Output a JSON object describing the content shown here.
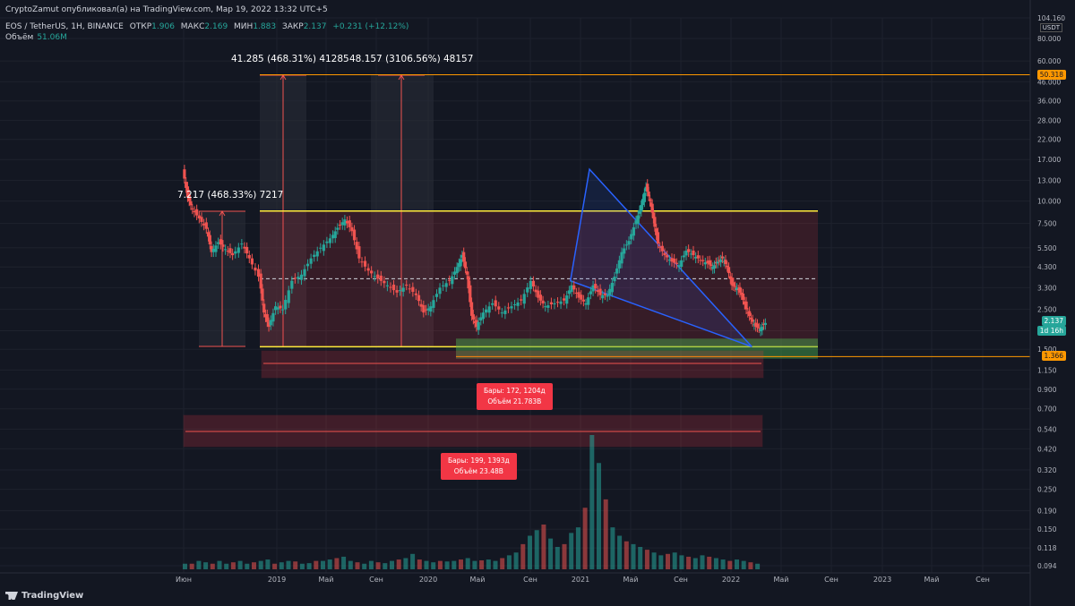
{
  "header": {
    "publisher_line": "CryptoZamut опубликовал(а) на TradingView.com, Мар 19, 2022 13:32 UTC+5",
    "symbol": "EOS / TetherUS, 1Н, BINANCE",
    "open_label": "ОТКР",
    "open_value": "1.906",
    "high_label": "МАКС",
    "high_value": "2.169",
    "low_label": "МИН",
    "low_value": "1.883",
    "close_label": "ЗАКР",
    "close_value": "2.137",
    "change": "+0.231 (+12.12%)",
    "volume_label": "Объём",
    "volume_value": "51.06M"
  },
  "brand": "TradingView",
  "currency": "USDT",
  "colors": {
    "up": "#26a69a",
    "down": "#ef5350",
    "band": "#ffeb3b",
    "triangle": "#2962ff",
    "accent": "#ff9800"
  },
  "measure_labels": [
    "41.285 (468.31%) 41285",
    "48.157 (3106.56%) 48157",
    "7.217 (468.33%) 7217"
  ],
  "range_labels": [
    {
      "bars": "Бары: 172, 1204д",
      "volume": "Объём 21.783B"
    },
    {
      "bars": "Бары: 199, 1393д",
      "volume": "Объём 23.48B"
    }
  ],
  "price_tags": {
    "upper": "50.318",
    "current": "2.137",
    "countdown": "1d 16h",
    "lower": "1.366"
  },
  "chart_data": {
    "type": "candlestick",
    "y_scale": "log",
    "y_ticks": [
      "104.160",
      "80.000",
      "60.000",
      "46.000",
      "36.000",
      "28.000",
      "22.000",
      "17.000",
      "13.000",
      "10.000",
      "7.500",
      "5.500",
      "4.300",
      "3.300",
      "2.500",
      "1.900",
      "1.500",
      "1.150",
      "0.900",
      "0.700",
      "0.540",
      "0.420",
      "0.320",
      "0.250",
      "0.190",
      "0.150",
      "0.118",
      "0.094"
    ],
    "x_ticks": [
      "Июн",
      "2019",
      "Май",
      "Сен",
      "2020",
      "Май",
      "Сен",
      "2021",
      "Май",
      "Сен",
      "2022",
      "Май",
      "Сен",
      "2023",
      "Май",
      "Сен"
    ],
    "levels": {
      "upper_band": 8.8,
      "lower_band": 1.55,
      "mid_dashed": 3.7,
      "green_zone": [
        1.33,
        1.72
      ],
      "upper_line": 50.318,
      "lower_line": 1.366
    },
    "triangle": {
      "apex_top": [
        8.5,
        15.0
      ],
      "left_base": [
        8.1,
        3.6
      ],
      "right_tip": [
        11.9,
        1.55
      ]
    },
    "price_path": [
      [
        0.0,
        15.0
      ],
      [
        0.1,
        10.5
      ],
      [
        0.2,
        9.0
      ],
      [
        0.35,
        8.0
      ],
      [
        0.5,
        7.0
      ],
      [
        0.6,
        5.2
      ],
      [
        0.75,
        5.9
      ],
      [
        0.9,
        5.4
      ],
      [
        1.05,
        5.0
      ],
      [
        1.25,
        5.8
      ],
      [
        1.4,
        4.8
      ],
      [
        1.6,
        3.8
      ],
      [
        1.7,
        2.4
      ],
      [
        1.8,
        2.0
      ],
      [
        1.95,
        2.6
      ],
      [
        2.1,
        2.5
      ],
      [
        2.3,
        3.6
      ],
      [
        2.5,
        3.9
      ],
      [
        2.7,
        4.8
      ],
      [
        2.9,
        5.5
      ],
      [
        3.1,
        6.2
      ],
      [
        3.25,
        7.1
      ],
      [
        3.4,
        7.9
      ],
      [
        3.55,
        6.8
      ],
      [
        3.7,
        4.8
      ],
      [
        3.9,
        4.1
      ],
      [
        4.1,
        3.7
      ],
      [
        4.3,
        3.4
      ],
      [
        4.5,
        3.1
      ],
      [
        4.7,
        3.4
      ],
      [
        4.9,
        3.0
      ],
      [
        5.05,
        2.4
      ],
      [
        5.2,
        2.6
      ],
      [
        5.4,
        3.3
      ],
      [
        5.6,
        3.6
      ],
      [
        5.75,
        4.3
      ],
      [
        5.85,
        5.0
      ],
      [
        5.95,
        3.9
      ],
      [
        6.05,
        2.3
      ],
      [
        6.15,
        2.0
      ],
      [
        6.3,
        2.4
      ],
      [
        6.5,
        2.7
      ],
      [
        6.7,
        2.4
      ],
      [
        6.9,
        2.6
      ],
      [
        7.1,
        2.8
      ],
      [
        7.3,
        3.6
      ],
      [
        7.45,
        2.9
      ],
      [
        7.6,
        2.6
      ],
      [
        7.8,
        2.7
      ],
      [
        8.0,
        2.8
      ],
      [
        8.15,
        3.4
      ],
      [
        8.3,
        2.9
      ],
      [
        8.45,
        2.7
      ],
      [
        8.6,
        3.4
      ],
      [
        8.75,
        3.0
      ],
      [
        8.9,
        3.0
      ],
      [
        9.05,
        3.8
      ],
      [
        9.2,
        5.2
      ],
      [
        9.35,
        6.0
      ],
      [
        9.5,
        7.8
      ],
      [
        9.6,
        9.5
      ],
      [
        9.7,
        12.0
      ],
      [
        9.78,
        10.0
      ],
      [
        9.85,
        8.0
      ],
      [
        9.95,
        5.8
      ],
      [
        10.1,
        5.0
      ],
      [
        10.25,
        4.6
      ],
      [
        10.4,
        4.4
      ],
      [
        10.55,
        5.3
      ],
      [
        10.7,
        5.0
      ],
      [
        10.85,
        4.7
      ],
      [
        11.0,
        4.5
      ],
      [
        11.1,
        4.3
      ],
      [
        11.2,
        4.6
      ],
      [
        11.3,
        4.8
      ],
      [
        11.4,
        4.3
      ],
      [
        11.5,
        3.4
      ],
      [
        11.6,
        3.3
      ],
      [
        11.7,
        3.0
      ],
      [
        11.8,
        2.5
      ],
      [
        11.9,
        2.2
      ],
      [
        12.0,
        2.0
      ],
      [
        12.1,
        1.95
      ],
      [
        12.2,
        2.1
      ]
    ],
    "volume_path": [
      0.2,
      0.2,
      0.3,
      0.25,
      0.2,
      0.3,
      0.2,
      0.25,
      0.3,
      0.2,
      0.25,
      0.3,
      0.35,
      0.2,
      0.25,
      0.3,
      0.28,
      0.2,
      0.22,
      0.3,
      0.3,
      0.35,
      0.4,
      0.45,
      0.3,
      0.25,
      0.2,
      0.3,
      0.25,
      0.22,
      0.3,
      0.35,
      0.4,
      0.55,
      0.35,
      0.3,
      0.25,
      0.3,
      0.28,
      0.3,
      0.35,
      0.4,
      0.3,
      0.32,
      0.35,
      0.3,
      0.4,
      0.5,
      0.6,
      0.9,
      1.2,
      1.4,
      1.6,
      1.1,
      0.8,
      0.9,
      1.3,
      1.5,
      2.2,
      4.8,
      3.8,
      2.5,
      1.5,
      1.2,
      1.0,
      0.9,
      0.8,
      0.7,
      0.6,
      0.5,
      0.55,
      0.6,
      0.5,
      0.45,
      0.4,
      0.5,
      0.45,
      0.4,
      0.35,
      0.3,
      0.35,
      0.3,
      0.25,
      0.2
    ]
  }
}
